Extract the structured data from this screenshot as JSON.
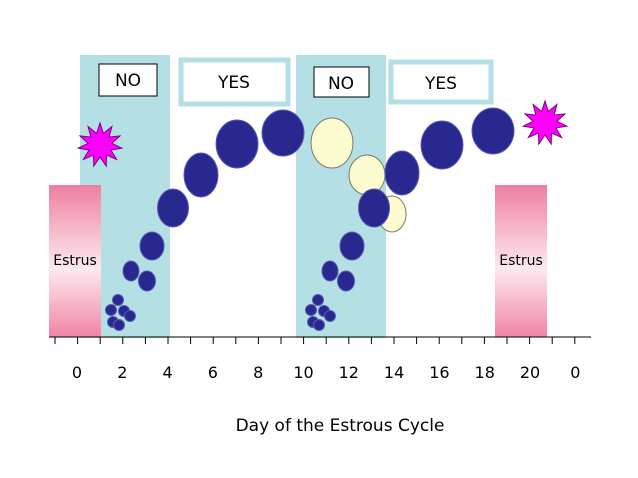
{
  "axis": {
    "title": "Day of the Estrous Cycle",
    "ticks": [
      "0",
      "2",
      "4",
      "6",
      "8",
      "10",
      "12",
      "14",
      "16",
      "18",
      "20",
      "0"
    ]
  },
  "estrus_label": "Estrus",
  "phase_boxes": [
    "NO",
    "YES",
    "NO",
    "YES"
  ],
  "colors": {
    "shade": "#b4dfe4",
    "follicle_dominant": "#28288e",
    "follicle_regressing": "#fdfbd0",
    "starburst": "#ff00ff",
    "estrus_bar_top": "#f08aa6",
    "estrus_bar_bottom": "#fbd7e2"
  },
  "icons": [
    "starburst-icon"
  ]
}
